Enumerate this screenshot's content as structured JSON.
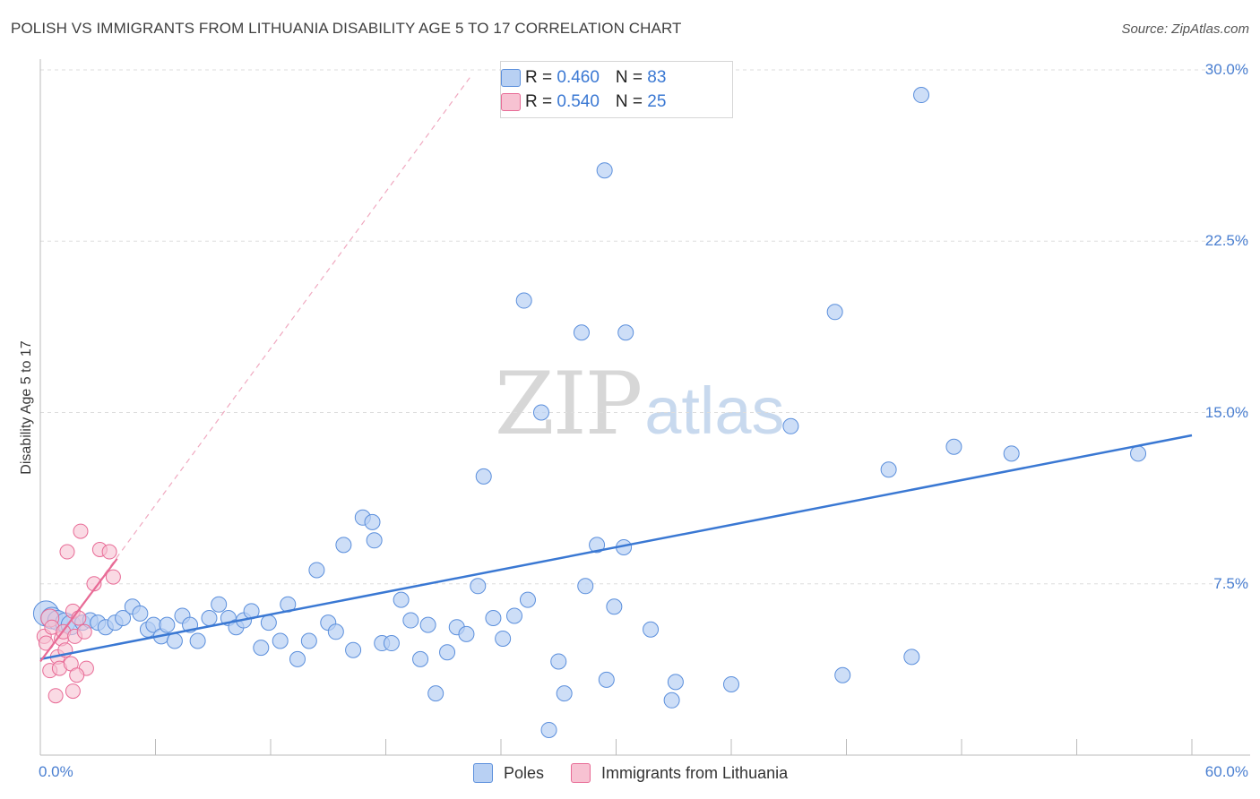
{
  "title": "POLISH VS IMMIGRANTS FROM LITHUANIA DISABILITY AGE 5 TO 17 CORRELATION CHART",
  "source": "Source: ZipAtlas.com",
  "watermark": {
    "zip": "ZIP",
    "atlas": "atlas"
  },
  "colors": {
    "blue": "#5b8fdc",
    "blue_fill": "#b8d0f3",
    "pink": "#e86b96",
    "pink_fill": "#f7c2d2",
    "grid": "#dddddd"
  },
  "legend": {
    "rows": [
      {
        "r_label": "R = ",
        "r_value": "0.460",
        "n_label": "N = ",
        "n_value": "83"
      },
      {
        "r_label": "R = ",
        "r_value": "0.540",
        "n_label": "N = ",
        "n_value": "25"
      }
    ],
    "bottom": [
      "Poles",
      "Immigrants from Lithuania"
    ]
  },
  "chart_data": {
    "type": "scatter",
    "title": "POLISH VS IMMIGRANTS FROM LITHUANIA DISABILITY AGE 5 TO 17 CORRELATION CHART",
    "ylabel": "Disability Age 5 to 17",
    "xlim": [
      0,
      60
    ],
    "ylim": [
      0,
      30
    ],
    "x_tick_labels": [
      "0.0%",
      "60.0%"
    ],
    "y_ticks": [
      7.5,
      15.0,
      22.5,
      30.0
    ],
    "y_tick_labels": [
      "7.5%",
      "15.0%",
      "22.5%",
      "30.0%"
    ],
    "grid": true,
    "legend_position": "top-center",
    "series": [
      {
        "name": "Poles",
        "color": "#5b8fdc",
        "points": [
          [
            0.3,
            6.2
          ],
          [
            0.6,
            6.0
          ],
          [
            0.9,
            5.9
          ],
          [
            1.3,
            5.8
          ],
          [
            1.6,
            5.7
          ],
          [
            2.2,
            5.8
          ],
          [
            2.6,
            5.9
          ],
          [
            3.0,
            5.8
          ],
          [
            3.4,
            5.6
          ],
          [
            3.9,
            5.8
          ],
          [
            4.3,
            6.0
          ],
          [
            4.8,
            6.5
          ],
          [
            5.2,
            6.2
          ],
          [
            5.6,
            5.5
          ],
          [
            5.9,
            5.7
          ],
          [
            6.3,
            5.2
          ],
          [
            6.6,
            5.7
          ],
          [
            7.0,
            5.0
          ],
          [
            7.4,
            6.1
          ],
          [
            7.8,
            5.7
          ],
          [
            8.2,
            5.0
          ],
          [
            8.8,
            6.0
          ],
          [
            9.3,
            6.6
          ],
          [
            9.8,
            6.0
          ],
          [
            10.2,
            5.6
          ],
          [
            10.6,
            5.9
          ],
          [
            11.0,
            6.3
          ],
          [
            11.5,
            4.7
          ],
          [
            11.9,
            5.8
          ],
          [
            12.5,
            5.0
          ],
          [
            12.9,
            6.6
          ],
          [
            13.4,
            4.2
          ],
          [
            14.0,
            5.0
          ],
          [
            14.4,
            8.1
          ],
          [
            15.0,
            5.8
          ],
          [
            15.4,
            5.4
          ],
          [
            15.8,
            9.2
          ],
          [
            16.3,
            4.6
          ],
          [
            16.8,
            10.4
          ],
          [
            17.4,
            9.4
          ],
          [
            17.8,
            4.9
          ],
          [
            18.3,
            4.9
          ],
          [
            18.8,
            6.8
          ],
          [
            19.3,
            5.9
          ],
          [
            19.8,
            4.2
          ],
          [
            20.2,
            5.7
          ],
          [
            20.6,
            2.7
          ],
          [
            21.2,
            4.5
          ],
          [
            21.7,
            5.6
          ],
          [
            22.2,
            5.3
          ],
          [
            22.8,
            7.4
          ],
          [
            23.1,
            12.2
          ],
          [
            23.6,
            6.0
          ],
          [
            24.1,
            5.1
          ],
          [
            24.7,
            6.1
          ],
          [
            25.2,
            19.9
          ],
          [
            25.4,
            6.8
          ],
          [
            26.1,
            15.0
          ],
          [
            26.5,
            1.1
          ],
          [
            27.0,
            4.1
          ],
          [
            27.3,
            2.7
          ],
          [
            28.2,
            18.5
          ],
          [
            28.4,
            7.4
          ],
          [
            29.0,
            9.2
          ],
          [
            29.5,
            3.3
          ],
          [
            29.9,
            6.5
          ],
          [
            30.4,
            9.1
          ],
          [
            30.5,
            18.5
          ],
          [
            32.9,
            2.4
          ],
          [
            31.8,
            5.5
          ],
          [
            33.1,
            3.2
          ],
          [
            36.0,
            3.1
          ],
          [
            39.1,
            14.4
          ],
          [
            41.4,
            19.4
          ],
          [
            41.8,
            3.5
          ],
          [
            44.2,
            12.5
          ],
          [
            45.4,
            4.3
          ],
          [
            45.9,
            28.9
          ],
          [
            47.6,
            13.5
          ],
          [
            50.6,
            13.2
          ],
          [
            57.2,
            13.2
          ],
          [
            29.4,
            25.6
          ],
          [
            17.3,
            10.2
          ]
        ],
        "trend": {
          "x": [
            0.0,
            60.0
          ],
          "y": [
            4.2,
            14.0
          ]
        }
      },
      {
        "name": "Immigrants from Lithuania",
        "color": "#e86b96",
        "points": [
          [
            0.2,
            5.2
          ],
          [
            0.3,
            4.9
          ],
          [
            0.5,
            3.7
          ],
          [
            0.5,
            6.0
          ],
          [
            0.6,
            5.6
          ],
          [
            0.8,
            2.6
          ],
          [
            0.9,
            4.3
          ],
          [
            1.0,
            3.8
          ],
          [
            1.1,
            5.1
          ],
          [
            1.2,
            5.4
          ],
          [
            1.3,
            4.6
          ],
          [
            1.4,
            8.9
          ],
          [
            1.6,
            4.0
          ],
          [
            1.7,
            6.3
          ],
          [
            1.7,
            2.8
          ],
          [
            1.8,
            5.2
          ],
          [
            2.0,
            6.0
          ],
          [
            2.1,
            9.8
          ],
          [
            2.3,
            5.4
          ],
          [
            2.4,
            3.8
          ],
          [
            2.8,
            7.5
          ],
          [
            3.1,
            9.0
          ],
          [
            3.6,
            8.9
          ],
          [
            3.8,
            7.8
          ],
          [
            1.9,
            3.5
          ]
        ],
        "trend": {
          "x": [
            0.0,
            4.0
          ],
          "y": [
            4.1,
            8.6
          ]
        },
        "trend_extended": {
          "x": [
            0.0,
            22.5
          ],
          "y": [
            4.1,
            29.8
          ]
        }
      }
    ]
  }
}
